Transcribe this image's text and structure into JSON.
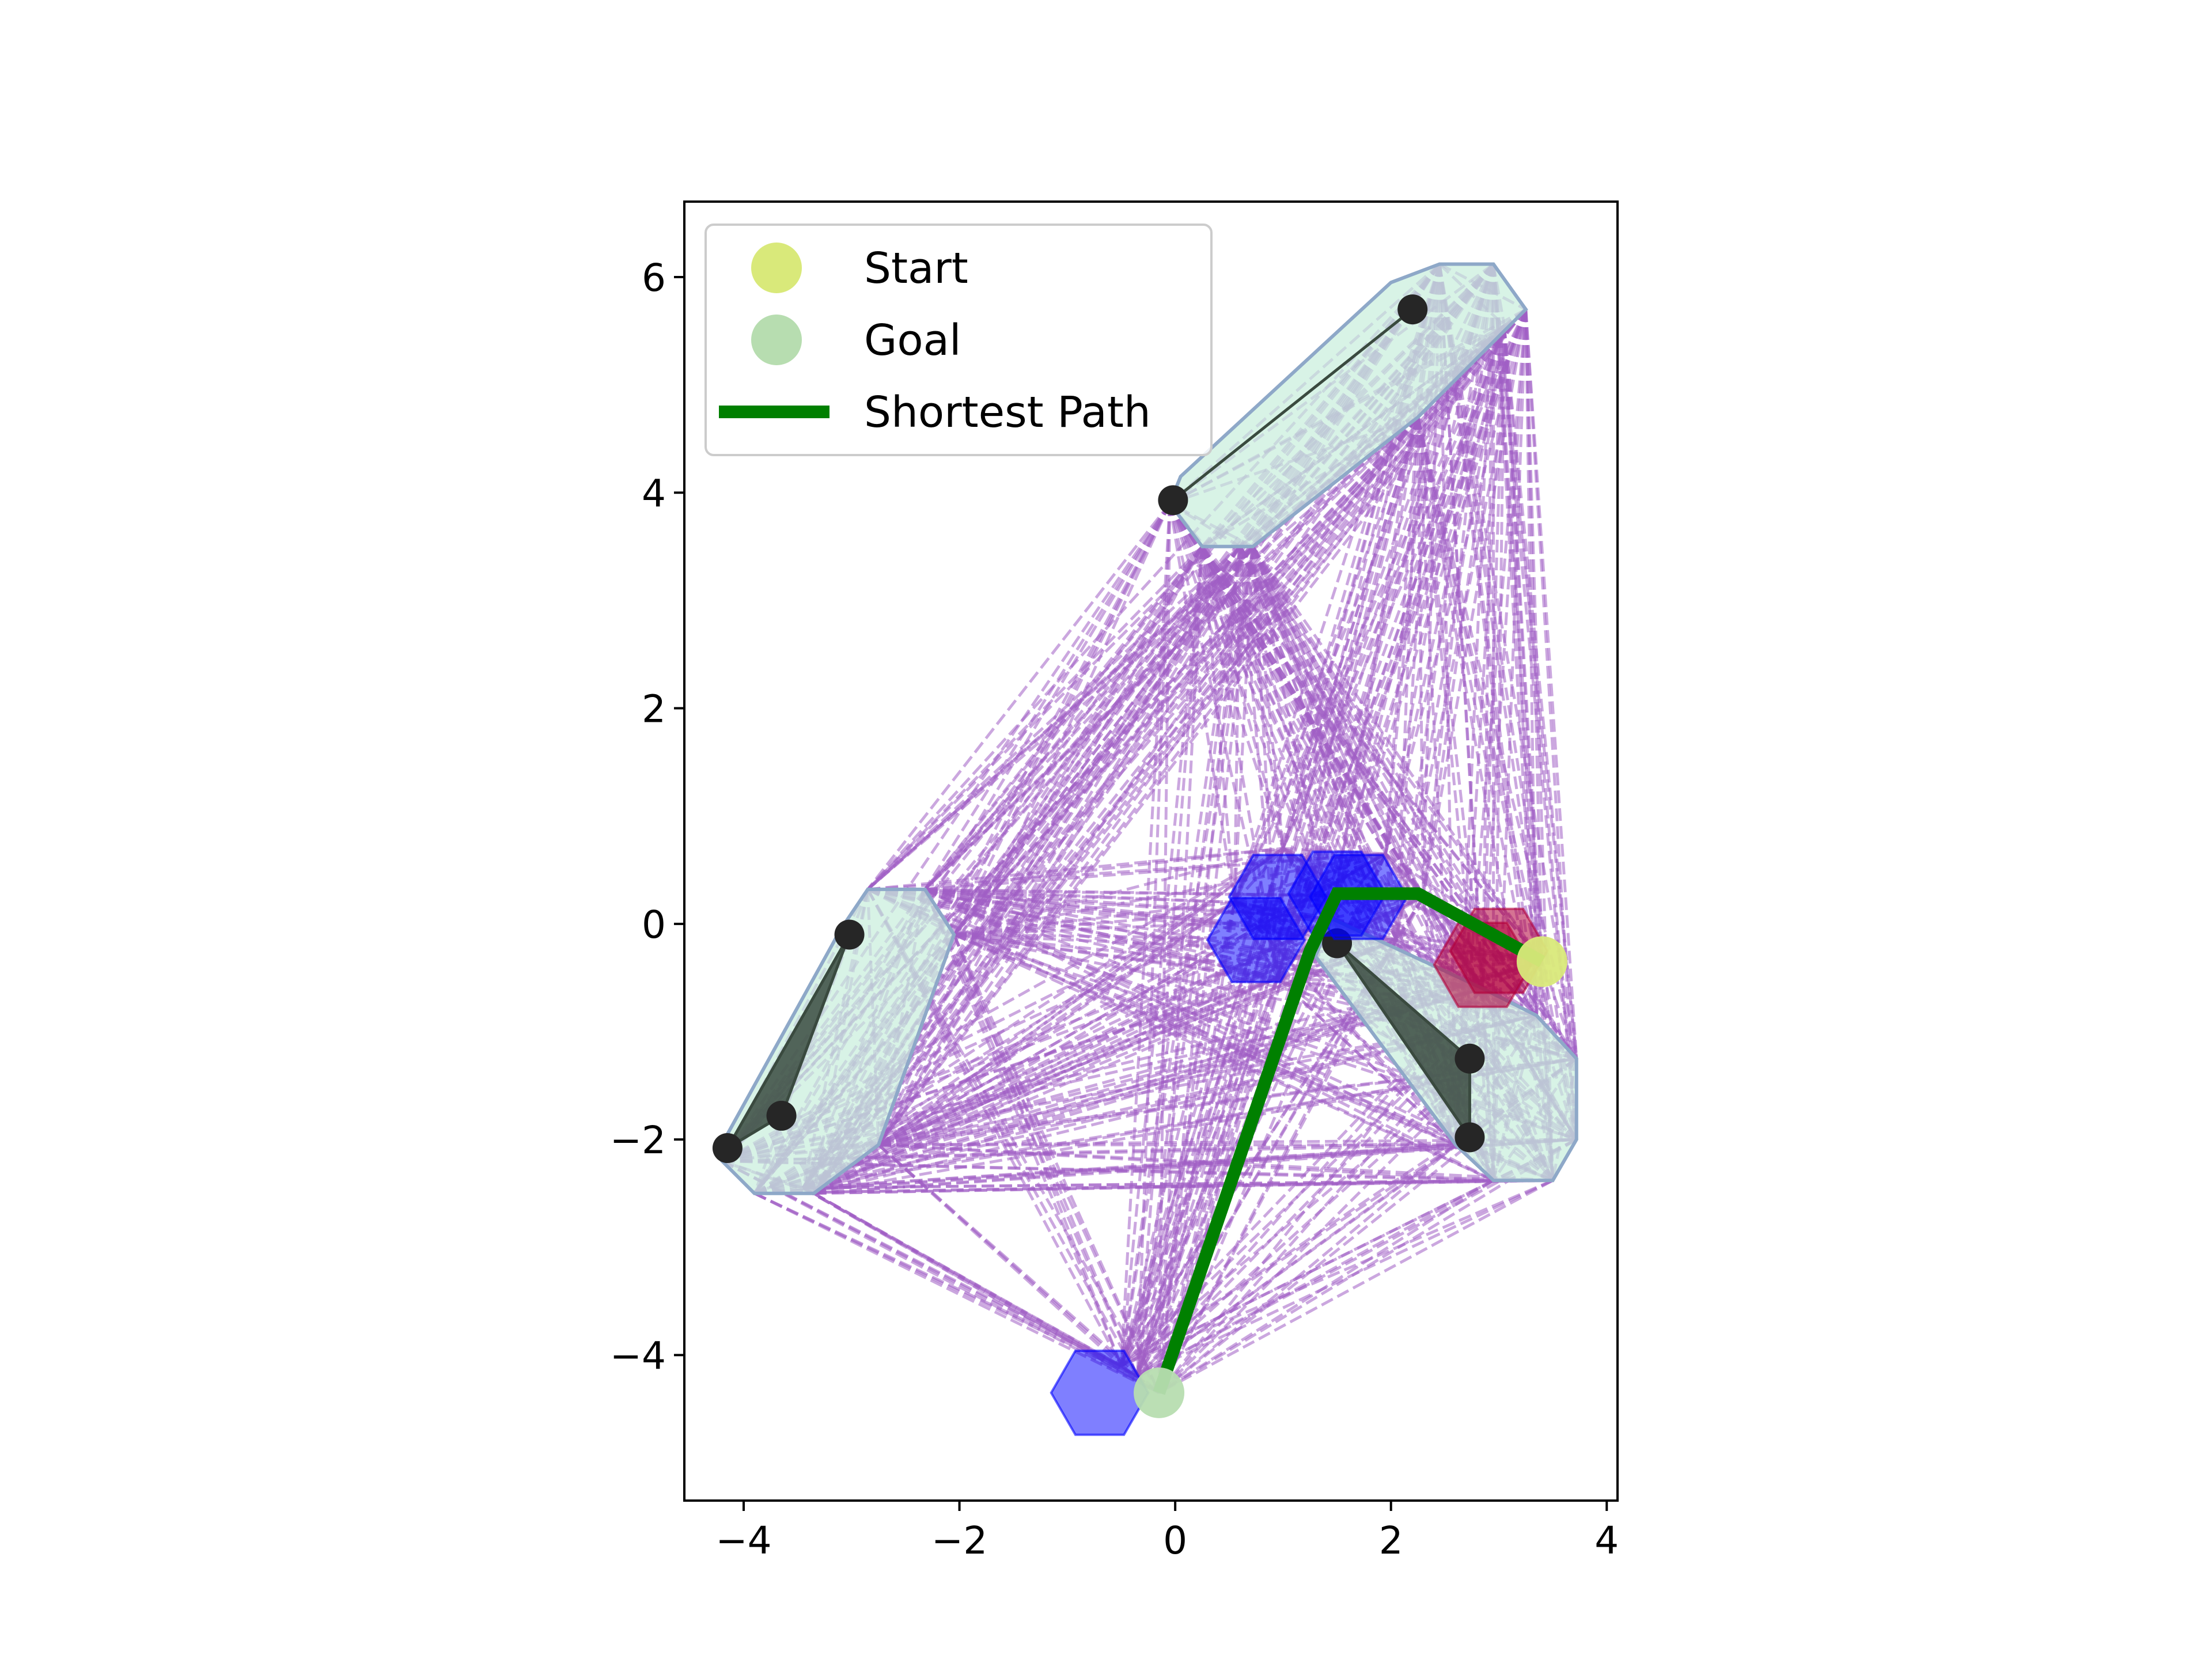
{
  "chart_data": {
    "type": "scatter",
    "title": "",
    "xlabel": "",
    "ylabel": "",
    "xlim": [
      -4.55,
      4.1
    ],
    "ylim": [
      -5.35,
      6.7
    ],
    "xticks": [
      -4,
      -2,
      0,
      2,
      4
    ],
    "yticks": [
      -4,
      -2,
      0,
      2,
      4,
      6
    ],
    "xtick_labels": [
      "−4",
      "−2",
      "0",
      "2",
      "4"
    ],
    "ytick_labels": [
      "−4",
      "−2",
      "0",
      "2",
      "4",
      "6"
    ],
    "grid": false,
    "legend": {
      "placement": "upper-left",
      "entries": [
        {
          "label": "Start",
          "marker": "circle",
          "color": "#d9e97a"
        },
        {
          "label": "Goal",
          "marker": "circle",
          "color": "#b7ddb0"
        },
        {
          "label": "Shortest Path",
          "marker": "line",
          "color": "#008000"
        }
      ]
    },
    "colors": {
      "visibility_edges": "#a05ec4",
      "inflated_obstacles": "#c8eedb",
      "inflated_outline": "#8ea8c8",
      "obstacle_fill": "#3a4a3f",
      "obstacle_vertex": "#262626",
      "blue_hexagons": "#0000ff",
      "red_hexagon": "#b3003a",
      "path": "#008000"
    },
    "start": [
      3.4,
      -0.35
    ],
    "goal": [
      -0.15,
      -4.35
    ],
    "shortest_path": [
      [
        3.4,
        -0.35
      ],
      [
        2.25,
        0.28
      ],
      [
        1.5,
        0.28
      ],
      [
        1.25,
        -0.25
      ],
      [
        -0.15,
        -4.35
      ]
    ],
    "obstacles": [
      {
        "name": "upper-segment",
        "vertices": [
          [
            2.2,
            5.7
          ],
          [
            -0.02,
            3.93
          ]
        ]
      },
      {
        "name": "left-triangle",
        "vertices": [
          [
            -3.02,
            -0.1
          ],
          [
            -4.15,
            -2.08
          ],
          [
            -3.65,
            -1.78
          ]
        ]
      },
      {
        "name": "right-triangle",
        "vertices": [
          [
            1.5,
            -0.18
          ],
          [
            2.73,
            -1.25
          ],
          [
            2.73,
            -1.98
          ]
        ]
      }
    ],
    "inflated_regions": [
      {
        "name": "upper-region",
        "vertices": [
          [
            2.45,
            6.12
          ],
          [
            2.95,
            6.12
          ],
          [
            3.25,
            5.7
          ],
          [
            2.25,
            4.7
          ],
          [
            0.72,
            3.5
          ],
          [
            0.25,
            3.5
          ],
          [
            -0.05,
            3.9
          ],
          [
            0.05,
            4.15
          ],
          [
            2.0,
            5.95
          ]
        ]
      },
      {
        "name": "left-region",
        "vertices": [
          [
            -2.85,
            0.32
          ],
          [
            -2.32,
            0.32
          ],
          [
            -2.05,
            -0.1
          ],
          [
            -2.75,
            -2.05
          ],
          [
            -3.35,
            -2.5
          ],
          [
            -3.9,
            -2.5
          ],
          [
            -4.2,
            -2.2
          ],
          [
            -4.15,
            -1.95
          ],
          [
            -3.1,
            -0.05
          ]
        ]
      },
      {
        "name": "right-region",
        "vertices": [
          [
            1.45,
            0.05
          ],
          [
            2.85,
            -0.6
          ],
          [
            3.35,
            -0.85
          ],
          [
            3.72,
            -1.25
          ],
          [
            3.72,
            -2.0
          ],
          [
            3.5,
            -2.38
          ],
          [
            2.95,
            -2.38
          ],
          [
            2.6,
            -2.05
          ],
          [
            1.3,
            -0.3
          ]
        ]
      }
    ],
    "hexagons": [
      {
        "color": "blue",
        "center": [
          0.95,
          0.25
        ],
        "radius": 0.45
      },
      {
        "color": "blue",
        "center": [
          1.5,
          0.28
        ],
        "radius": 0.45
      },
      {
        "color": "blue",
        "center": [
          0.75,
          -0.15
        ],
        "radius": 0.45
      },
      {
        "color": "blue",
        "center": [
          1.7,
          0.25
        ],
        "radius": 0.45
      },
      {
        "color": "blue",
        "center": [
          -0.7,
          -4.35
        ],
        "radius": 0.45
      },
      {
        "color": "red",
        "center": [
          3.0,
          -0.25
        ],
        "radius": 0.45
      },
      {
        "color": "red",
        "center": [
          2.85,
          -0.38
        ],
        "radius": 0.45
      }
    ],
    "visibility_vertices": [
      [
        2.45,
        6.12
      ],
      [
        2.95,
        6.12
      ],
      [
        3.25,
        5.7
      ],
      [
        2.25,
        4.7
      ],
      [
        0.72,
        3.5
      ],
      [
        0.25,
        3.5
      ],
      [
        -0.05,
        3.9
      ],
      [
        3.05,
        5.55
      ],
      [
        0.6,
        3.5
      ],
      [
        -2.85,
        0.32
      ],
      [
        -2.32,
        0.32
      ],
      [
        -2.05,
        -0.1
      ],
      [
        -2.75,
        -2.05
      ],
      [
        -3.35,
        -2.5
      ],
      [
        -3.9,
        -2.5
      ],
      [
        -4.2,
        -2.2
      ],
      [
        -3.45,
        -2.45
      ],
      [
        1.45,
        0.05
      ],
      [
        2.85,
        -0.6
      ],
      [
        3.35,
        -0.85
      ],
      [
        3.72,
        -1.25
      ],
      [
        3.72,
        -2.0
      ],
      [
        3.5,
        -2.38
      ],
      [
        2.95,
        -2.38
      ],
      [
        2.6,
        -2.05
      ],
      [
        0.95,
        -0.5
      ],
      [
        0.55,
        0.2
      ],
      [
        1.95,
        0.65
      ],
      [
        1.0,
        0.7
      ],
      [
        2.3,
        0.25
      ],
      [
        2.05,
        -0.15
      ],
      [
        -0.15,
        -4.35
      ],
      [
        -0.5,
        -4.1
      ],
      [
        -0.35,
        -4.2
      ],
      [
        3.4,
        -0.35
      ]
    ]
  }
}
